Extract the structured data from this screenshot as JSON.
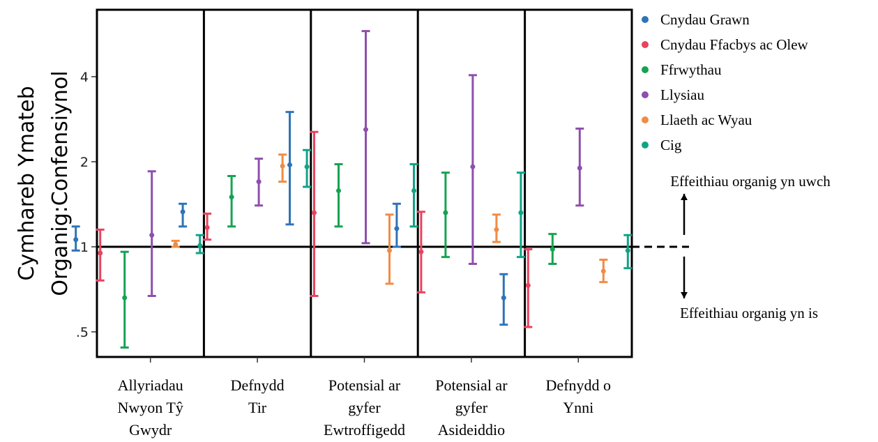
{
  "chart_data": {
    "type": "errorbar",
    "ylabel_lines": [
      "Cymhareb Ymateb",
      "Organig:Confensiynol"
    ],
    "y_scale": "log",
    "y_ticks": [
      {
        "value": 0.5,
        "label": ".5"
      },
      {
        "value": 1,
        "label": "1"
      },
      {
        "value": 2,
        "label": "2"
      },
      {
        "value": 4,
        "label": "4"
      }
    ],
    "ylim": [
      0.45,
      7.0
    ],
    "reference_line": 1,
    "groups": [
      {
        "label_lines": [
          "Allyriadau",
          "Nwyon Tŷ",
          "Gwydr"
        ]
      },
      {
        "label_lines": [
          "Defnydd",
          "Tir"
        ]
      },
      {
        "label_lines": [
          "Potensial ar",
          "gyfer",
          "Ewtroffigedd"
        ]
      },
      {
        "label_lines": [
          "Potensial ar",
          "gyfer",
          "Asideiddio"
        ]
      },
      {
        "label_lines": [
          "Defnydd o",
          "Ynni"
        ]
      }
    ],
    "series": [
      {
        "name": "Cnydau Grawn",
        "color": "#2f73b8",
        "points": [
          {
            "est": 1.06,
            "low": 0.97,
            "high": 1.18
          },
          {
            "est": 1.33,
            "low": 1.18,
            "high": 1.42
          },
          {
            "est": 1.95,
            "low": 1.2,
            "high": 3.0
          },
          {
            "est": 1.16,
            "low": 1.0,
            "high": 1.42
          },
          {
            "est": 0.66,
            "low": 0.53,
            "high": 0.8
          }
        ]
      },
      {
        "name": "Cnydau Ffacbys ac Olew",
        "color": "#e8435f",
        "points": [
          {
            "est": 0.95,
            "low": 0.76,
            "high": 1.15
          },
          {
            "est": 1.17,
            "low": 1.06,
            "high": 1.31
          },
          {
            "est": 1.32,
            "low": 0.67,
            "high": 2.55
          },
          {
            "est": 0.96,
            "low": 0.69,
            "high": 1.33
          },
          {
            "est": 0.73,
            "low": 0.52,
            "high": 0.98
          }
        ]
      },
      {
        "name": "Ffrwythau",
        "color": "#15a352",
        "points": [
          {
            "est": 0.66,
            "low": 0.44,
            "high": 0.96
          },
          {
            "est": 1.5,
            "low": 1.18,
            "high": 1.78
          },
          {
            "est": 1.58,
            "low": 1.18,
            "high": 1.96
          },
          {
            "est": 1.32,
            "low": 0.92,
            "high": 1.83
          },
          {
            "est": 0.98,
            "low": 0.87,
            "high": 1.11
          }
        ]
      },
      {
        "name": "Llysiau",
        "color": "#8e4fae",
        "points": [
          {
            "est": 1.1,
            "low": 0.67,
            "high": 1.85
          },
          {
            "est": 1.7,
            "low": 1.4,
            "high": 2.05
          },
          {
            "est": 2.6,
            "low": 1.03,
            "high": 5.8
          },
          {
            "est": 1.92,
            "low": 0.87,
            "high": 4.05
          },
          {
            "est": 1.9,
            "low": 1.4,
            "high": 2.62
          }
        ]
      },
      {
        "name": "Llaeth ac Wyau",
        "color": "#f08c45",
        "points": [
          {
            "est": 1.02,
            "low": 1.0,
            "high": 1.05
          },
          {
            "est": 1.93,
            "low": 1.7,
            "high": 2.12
          },
          {
            "est": 0.97,
            "low": 0.74,
            "high": 1.3
          },
          {
            "est": 1.15,
            "low": 1.04,
            "high": 1.3
          },
          {
            "est": 0.82,
            "low": 0.75,
            "high": 0.9
          }
        ]
      },
      {
        "name": "Cig",
        "color": "#10a386",
        "points": [
          {
            "est": 1.01,
            "low": 0.95,
            "high": 1.1
          },
          {
            "est": 1.92,
            "low": 1.63,
            "high": 2.2
          },
          {
            "est": 1.58,
            "low": 1.18,
            "high": 1.96
          },
          {
            "est": 1.32,
            "low": 0.92,
            "high": 1.83
          },
          {
            "est": 0.97,
            "low": 0.84,
            "high": 1.1
          }
        ]
      }
    ],
    "legend_position": "right",
    "annotations": {
      "higher": "Effeithiau organig yn uwch",
      "lower": "Effeithiau organig yn is"
    }
  }
}
